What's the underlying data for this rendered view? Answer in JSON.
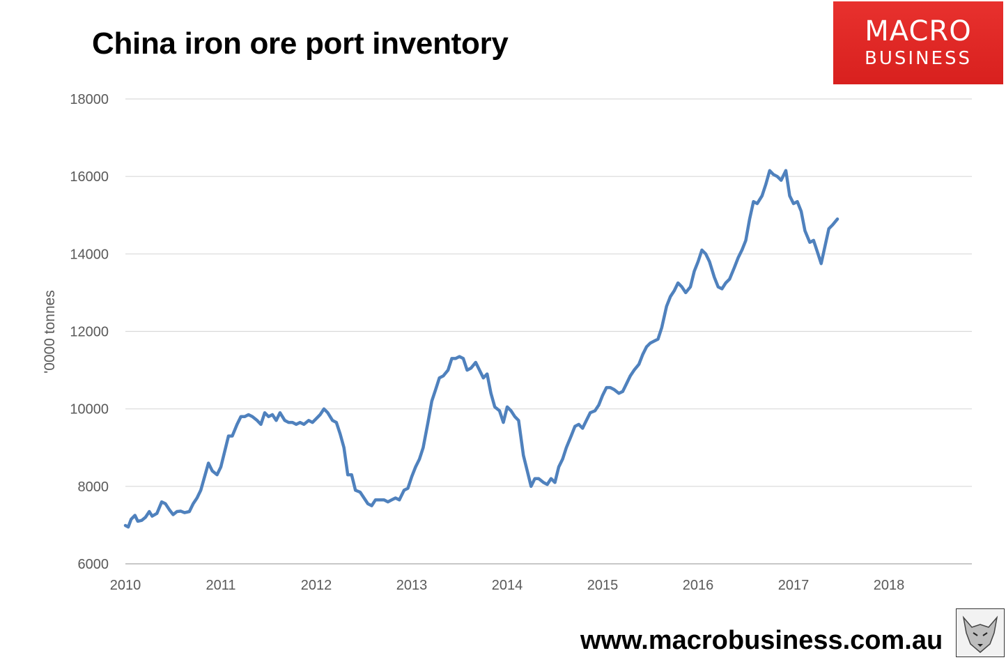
{
  "title": "China iron ore port inventory",
  "logo": {
    "line1": "MACRO",
    "line2": "BUSINESS",
    "color": "#e02522"
  },
  "footer_url": "www.macrobusiness.com.au",
  "chart_data": {
    "type": "line",
    "title": "China iron ore port inventory",
    "ylabel": "'0000 tonnes",
    "xlabel": "",
    "xlim": [
      2010,
      2018.9
    ],
    "ylim": [
      6000,
      18000
    ],
    "yticks": [
      6000,
      8000,
      10000,
      12000,
      14000,
      16000,
      18000
    ],
    "xticks": [
      2010,
      2011,
      2012,
      2013,
      2014,
      2015,
      2016,
      2017,
      2018
    ],
    "grid": "horizontal",
    "legend": "none",
    "series_color": "#4f81bd",
    "series": [
      {
        "points": [
          [
            2010.0,
            6990
          ],
          [
            2010.03,
            6950
          ],
          [
            2010.06,
            7150
          ],
          [
            2010.1,
            7250
          ],
          [
            2010.13,
            7100
          ],
          [
            2010.17,
            7120
          ],
          [
            2010.21,
            7200
          ],
          [
            2010.25,
            7350
          ],
          [
            2010.28,
            7230
          ],
          [
            2010.33,
            7300
          ],
          [
            2010.38,
            7600
          ],
          [
            2010.42,
            7550
          ],
          [
            2010.46,
            7400
          ],
          [
            2010.5,
            7270
          ],
          [
            2010.54,
            7350
          ],
          [
            2010.58,
            7360
          ],
          [
            2010.62,
            7320
          ],
          [
            2010.67,
            7350
          ],
          [
            2010.71,
            7550
          ],
          [
            2010.75,
            7700
          ],
          [
            2010.79,
            7900
          ],
          [
            2010.83,
            8250
          ],
          [
            2010.87,
            8600
          ],
          [
            2010.91,
            8400
          ],
          [
            2010.96,
            8300
          ],
          [
            2011.0,
            8500
          ],
          [
            2011.04,
            8900
          ],
          [
            2011.08,
            9300
          ],
          [
            2011.12,
            9300
          ],
          [
            2011.17,
            9600
          ],
          [
            2011.21,
            9800
          ],
          [
            2011.25,
            9800
          ],
          [
            2011.29,
            9850
          ],
          [
            2011.33,
            9800
          ],
          [
            2011.38,
            9700
          ],
          [
            2011.42,
            9600
          ],
          [
            2011.46,
            9900
          ],
          [
            2011.5,
            9800
          ],
          [
            2011.54,
            9850
          ],
          [
            2011.58,
            9700
          ],
          [
            2011.62,
            9900
          ],
          [
            2011.67,
            9700
          ],
          [
            2011.71,
            9650
          ],
          [
            2011.75,
            9650
          ],
          [
            2011.79,
            9600
          ],
          [
            2011.83,
            9650
          ],
          [
            2011.87,
            9600
          ],
          [
            2011.92,
            9700
          ],
          [
            2011.96,
            9650
          ],
          [
            2012.0,
            9750
          ],
          [
            2012.04,
            9850
          ],
          [
            2012.08,
            10000
          ],
          [
            2012.12,
            9900
          ],
          [
            2012.17,
            9700
          ],
          [
            2012.21,
            9650
          ],
          [
            2012.25,
            9350
          ],
          [
            2012.29,
            9000
          ],
          [
            2012.33,
            8300
          ],
          [
            2012.37,
            8300
          ],
          [
            2012.41,
            7900
          ],
          [
            2012.46,
            7850
          ],
          [
            2012.5,
            7700
          ],
          [
            2012.54,
            7550
          ],
          [
            2012.58,
            7500
          ],
          [
            2012.62,
            7650
          ],
          [
            2012.67,
            7650
          ],
          [
            2012.71,
            7650
          ],
          [
            2012.75,
            7600
          ],
          [
            2012.79,
            7650
          ],
          [
            2012.83,
            7700
          ],
          [
            2012.87,
            7650
          ],
          [
            2012.92,
            7900
          ],
          [
            2012.96,
            7950
          ],
          [
            2013.0,
            8250
          ],
          [
            2013.04,
            8500
          ],
          [
            2013.08,
            8700
          ],
          [
            2013.12,
            9000
          ],
          [
            2013.17,
            9650
          ],
          [
            2013.21,
            10200
          ],
          [
            2013.25,
            10500
          ],
          [
            2013.29,
            10800
          ],
          [
            2013.33,
            10850
          ],
          [
            2013.38,
            11000
          ],
          [
            2013.42,
            11300
          ],
          [
            2013.46,
            11300
          ],
          [
            2013.5,
            11350
          ],
          [
            2013.54,
            11300
          ],
          [
            2013.58,
            11000
          ],
          [
            2013.62,
            11050
          ],
          [
            2013.67,
            11200
          ],
          [
            2013.71,
            11000
          ],
          [
            2013.75,
            10800
          ],
          [
            2013.79,
            10900
          ],
          [
            2013.83,
            10400
          ],
          [
            2013.87,
            10050
          ],
          [
            2013.92,
            9950
          ],
          [
            2013.96,
            9650
          ],
          [
            2014.0,
            10050
          ],
          [
            2014.04,
            9950
          ],
          [
            2014.08,
            9800
          ],
          [
            2014.12,
            9700
          ],
          [
            2014.17,
            8800
          ],
          [
            2014.21,
            8400
          ],
          [
            2014.25,
            8000
          ],
          [
            2014.29,
            8200
          ],
          [
            2014.33,
            8200
          ],
          [
            2014.38,
            8100
          ],
          [
            2014.42,
            8050
          ],
          [
            2014.46,
            8200
          ],
          [
            2014.5,
            8100
          ],
          [
            2014.54,
            8500
          ],
          [
            2014.58,
            8700
          ],
          [
            2014.62,
            9000
          ],
          [
            2014.67,
            9300
          ],
          [
            2014.71,
            9550
          ],
          [
            2014.75,
            9600
          ],
          [
            2014.79,
            9500
          ],
          [
            2014.83,
            9700
          ],
          [
            2014.87,
            9900
          ],
          [
            2014.92,
            9950
          ],
          [
            2014.96,
            10100
          ],
          [
            2015.0,
            10350
          ],
          [
            2015.04,
            10550
          ],
          [
            2015.08,
            10550
          ],
          [
            2015.12,
            10500
          ],
          [
            2015.17,
            10400
          ],
          [
            2015.21,
            10450
          ],
          [
            2015.25,
            10650
          ],
          [
            2015.29,
            10850
          ],
          [
            2015.33,
            11000
          ],
          [
            2015.38,
            11150
          ],
          [
            2015.42,
            11400
          ],
          [
            2015.46,
            11600
          ],
          [
            2015.5,
            11700
          ],
          [
            2015.54,
            11750
          ],
          [
            2015.58,
            11800
          ],
          [
            2015.62,
            12100
          ],
          [
            2015.67,
            12650
          ],
          [
            2015.71,
            12900
          ],
          [
            2015.75,
            13050
          ],
          [
            2015.79,
            13250
          ],
          [
            2015.83,
            13150
          ],
          [
            2015.87,
            13000
          ],
          [
            2015.92,
            13150
          ],
          [
            2015.96,
            13550
          ],
          [
            2016.0,
            13800
          ],
          [
            2016.04,
            14100
          ],
          [
            2016.08,
            14000
          ],
          [
            2016.12,
            13800
          ],
          [
            2016.17,
            13400
          ],
          [
            2016.21,
            13150
          ],
          [
            2016.25,
            13100
          ],
          [
            2016.29,
            13250
          ],
          [
            2016.33,
            13350
          ],
          [
            2016.38,
            13650
          ],
          [
            2016.42,
            13900
          ],
          [
            2016.46,
            14100
          ],
          [
            2016.5,
            14350
          ],
          [
            2016.54,
            14900
          ],
          [
            2016.58,
            15350
          ],
          [
            2016.62,
            15300
          ],
          [
            2016.67,
            15500
          ],
          [
            2016.71,
            15800
          ],
          [
            2016.75,
            16150
          ],
          [
            2016.79,
            16050
          ],
          [
            2016.83,
            16000
          ],
          [
            2016.87,
            15900
          ],
          [
            2016.92,
            16150
          ],
          [
            2016.96,
            15500
          ],
          [
            2017.0,
            15300
          ],
          [
            2017.04,
            15350
          ],
          [
            2017.08,
            15100
          ],
          [
            2017.12,
            14600
          ],
          [
            2017.17,
            14300
          ],
          [
            2017.21,
            14350
          ],
          [
            2017.25,
            14050
          ],
          [
            2017.29,
            13750
          ],
          [
            2017.33,
            14200
          ],
          [
            2017.37,
            14650
          ],
          [
            2017.41,
            14750
          ],
          [
            2017.46,
            14900
          ]
        ]
      }
    ]
  }
}
